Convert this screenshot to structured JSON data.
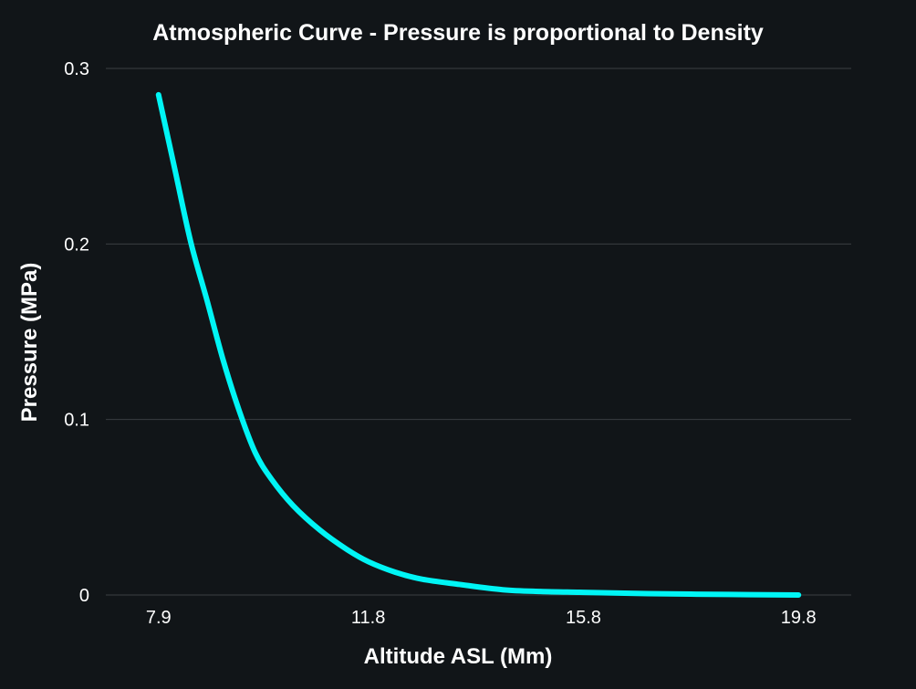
{
  "chart_data": {
    "type": "line",
    "title": "Atmospheric Curve - Pressure is proportional to Density",
    "xlabel": "Altitude ASL (Mm)",
    "ylabel": "Pressure (MPa)",
    "xlim": [
      6.92,
      20.78
    ],
    "ylim": [
      0,
      0.3
    ],
    "grid": true,
    "x_ticks": [
      7.9,
      11.8,
      15.8,
      19.8
    ],
    "x_tick_labels": [
      "7.9",
      "11.8",
      "15.8",
      "19.8"
    ],
    "y_ticks": [
      0,
      0.1,
      0.2,
      0.3
    ],
    "y_tick_labels": [
      "0",
      "0.1",
      "0.2",
      "0.3"
    ],
    "series": [
      {
        "name": "Pressure",
        "color": "#00f5f5",
        "x": [
          7.9,
          8.2,
          8.5,
          8.8,
          9.1,
          9.4,
          9.7,
          10.0,
          10.4,
          10.9,
          11.4,
          11.8,
          12.3,
          12.8,
          13.5,
          14.3,
          15.0,
          15.8,
          17.0,
          18.5,
          19.8
        ],
        "y": [
          0.285,
          0.243,
          0.201,
          0.168,
          0.134,
          0.105,
          0.081,
          0.066,
          0.051,
          0.037,
          0.026,
          0.019,
          0.013,
          0.009,
          0.006,
          0.003,
          0.002,
          0.0015,
          0.0008,
          0.0003,
          0.0
        ]
      }
    ]
  },
  "colors": {
    "background": "#111518",
    "grid": "#3a3e42",
    "text": "#ffffff"
  }
}
